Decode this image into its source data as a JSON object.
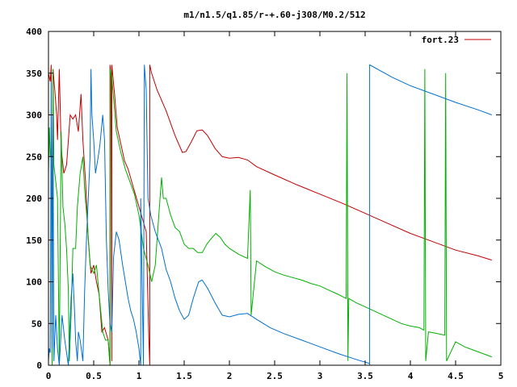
{
  "chart_data": {
    "type": "line",
    "title": "m1/n1.5/q1.85/r-+.60-j308/M0.2/512",
    "xlabel": "",
    "ylabel": "",
    "xlim": [
      0,
      5
    ],
    "ylim": [
      0,
      400
    ],
    "xticks": [
      "0",
      "0.5",
      "1",
      "1.5",
      "2",
      "2.5",
      "3",
      "3.5",
      "4",
      "4.5",
      "5"
    ],
    "yticks": [
      "0",
      "50",
      "100",
      "150",
      "200",
      "250",
      "300",
      "350",
      "400"
    ],
    "legend": {
      "position": "top-right",
      "label": "fort.23",
      "color": "#c00000"
    },
    "grid": false,
    "series": [
      {
        "color": "#c00000",
        "points": [
          [
            0.0,
            350
          ],
          [
            0.02,
            340
          ],
          [
            0.03,
            360
          ],
          [
            0.04,
            5
          ],
          [
            0.05,
            355
          ],
          [
            0.07,
            330
          ],
          [
            0.09,
            300
          ],
          [
            0.1,
            270
          ],
          [
            0.12,
            355
          ],
          [
            0.14,
            260
          ],
          [
            0.17,
            230
          ],
          [
            0.2,
            240
          ],
          [
            0.24,
            300
          ],
          [
            0.27,
            295
          ],
          [
            0.3,
            300
          ],
          [
            0.33,
            280
          ],
          [
            0.36,
            325
          ],
          [
            0.38,
            270
          ],
          [
            0.41,
            220
          ],
          [
            0.44,
            150
          ],
          [
            0.47,
            110
          ],
          [
            0.5,
            120
          ],
          [
            0.53,
            100
          ],
          [
            0.56,
            85
          ],
          [
            0.59,
            40
          ],
          [
            0.62,
            45
          ],
          [
            0.66,
            30
          ],
          [
            0.68,
            0
          ],
          [
            0.68,
            360
          ],
          [
            0.69,
            350
          ],
          [
            0.7,
            5
          ],
          [
            0.7,
            360
          ],
          [
            0.73,
            325
          ],
          [
            0.76,
            285
          ],
          [
            0.8,
            265
          ],
          [
            0.84,
            245
          ],
          [
            0.88,
            235
          ],
          [
            0.92,
            220
          ],
          [
            0.96,
            205
          ],
          [
            1.0,
            190
          ],
          [
            1.04,
            175
          ],
          [
            1.08,
            160
          ],
          [
            1.11,
            30
          ],
          [
            1.12,
            0
          ],
          [
            1.12,
            360
          ],
          [
            1.14,
            350
          ],
          [
            1.2,
            330
          ],
          [
            1.3,
            305
          ],
          [
            1.4,
            275
          ],
          [
            1.48,
            255
          ],
          [
            1.52,
            256
          ],
          [
            1.58,
            268
          ],
          [
            1.64,
            281
          ],
          [
            1.7,
            282
          ],
          [
            1.76,
            275
          ],
          [
            1.84,
            260
          ],
          [
            1.92,
            250
          ],
          [
            2.0,
            248
          ],
          [
            2.1,
            249
          ],
          [
            2.2,
            246
          ],
          [
            2.3,
            238
          ],
          [
            2.5,
            228
          ],
          [
            2.75,
            216
          ],
          [
            3.0,
            205
          ],
          [
            3.25,
            194
          ],
          [
            3.5,
            182
          ],
          [
            3.75,
            170
          ],
          [
            4.0,
            158
          ],
          [
            4.25,
            148
          ],
          [
            4.5,
            138
          ],
          [
            4.75,
            131
          ],
          [
            4.9,
            126
          ]
        ]
      },
      {
        "color": "#00b000",
        "points": [
          [
            0.0,
            230
          ],
          [
            0.01,
            285
          ],
          [
            0.02,
            250
          ],
          [
            0.03,
            260
          ],
          [
            0.04,
            0
          ],
          [
            0.05,
            355
          ],
          [
            0.06,
            240
          ],
          [
            0.08,
            220
          ],
          [
            0.1,
            200
          ],
          [
            0.12,
            5
          ],
          [
            0.14,
            280
          ],
          [
            0.16,
            190
          ],
          [
            0.18,
            170
          ],
          [
            0.2,
            140
          ],
          [
            0.22,
            90
          ],
          [
            0.23,
            5
          ],
          [
            0.25,
            60
          ],
          [
            0.27,
            140
          ],
          [
            0.3,
            140
          ],
          [
            0.32,
            190
          ],
          [
            0.35,
            230
          ],
          [
            0.38,
            250
          ],
          [
            0.4,
            210
          ],
          [
            0.43,
            170
          ],
          [
            0.46,
            120
          ],
          [
            0.5,
            110
          ],
          [
            0.53,
            120
          ],
          [
            0.56,
            85
          ],
          [
            0.6,
            40
          ],
          [
            0.63,
            30
          ],
          [
            0.66,
            30
          ],
          [
            0.68,
            0
          ],
          [
            0.68,
            355
          ],
          [
            0.7,
            345
          ],
          [
            0.72,
            320
          ],
          [
            0.75,
            280
          ],
          [
            0.8,
            255
          ],
          [
            0.85,
            235
          ],
          [
            0.9,
            220
          ],
          [
            0.95,
            205
          ],
          [
            1.0,
            180
          ],
          [
            1.05,
            140
          ],
          [
            1.1,
            120
          ],
          [
            1.14,
            100
          ],
          [
            1.18,
            120
          ],
          [
            1.22,
            180
          ],
          [
            1.25,
            225
          ],
          [
            1.27,
            200
          ],
          [
            1.3,
            200
          ],
          [
            1.35,
            180
          ],
          [
            1.4,
            165
          ],
          [
            1.45,
            160
          ],
          [
            1.5,
            145
          ],
          [
            1.55,
            140
          ],
          [
            1.6,
            140
          ],
          [
            1.65,
            135
          ],
          [
            1.7,
            135
          ],
          [
            1.75,
            145
          ],
          [
            1.8,
            152
          ],
          [
            1.85,
            158
          ],
          [
            1.9,
            153
          ],
          [
            1.95,
            145
          ],
          [
            2.0,
            140
          ],
          [
            2.1,
            133
          ],
          [
            2.2,
            128
          ],
          [
            2.23,
            210
          ],
          [
            2.24,
            60
          ],
          [
            2.3,
            125
          ],
          [
            2.4,
            118
          ],
          [
            2.5,
            112
          ],
          [
            2.6,
            108
          ],
          [
            2.7,
            105
          ],
          [
            2.8,
            102
          ],
          [
            2.9,
            98
          ],
          [
            3.0,
            95
          ],
          [
            3.1,
            90
          ],
          [
            3.2,
            85
          ],
          [
            3.29,
            80
          ],
          [
            3.3,
            350
          ],
          [
            3.31,
            5
          ],
          [
            3.32,
            80
          ],
          [
            3.4,
            75
          ],
          [
            3.5,
            70
          ],
          [
            3.6,
            65
          ],
          [
            3.7,
            60
          ],
          [
            3.8,
            55
          ],
          [
            3.9,
            50
          ],
          [
            4.0,
            47
          ],
          [
            4.1,
            45
          ],
          [
            4.15,
            42
          ],
          [
            4.16,
            355
          ],
          [
            4.17,
            5
          ],
          [
            4.2,
            40
          ],
          [
            4.3,
            38
          ],
          [
            4.38,
            36
          ],
          [
            4.39,
            350
          ],
          [
            4.4,
            5
          ],
          [
            4.5,
            28
          ],
          [
            4.6,
            22
          ],
          [
            4.7,
            18
          ],
          [
            4.8,
            14
          ],
          [
            4.9,
            10
          ]
        ]
      },
      {
        "color": "#0070d0",
        "points": [
          [
            0.0,
            5
          ],
          [
            0.01,
            20
          ],
          [
            0.02,
            15
          ],
          [
            0.03,
            340
          ],
          [
            0.04,
            20
          ],
          [
            0.05,
            300
          ],
          [
            0.06,
            5
          ],
          [
            0.08,
            60
          ],
          [
            0.1,
            20
          ],
          [
            0.12,
            0
          ],
          [
            0.15,
            60
          ],
          [
            0.18,
            30
          ],
          [
            0.22,
            0
          ],
          [
            0.25,
            80
          ],
          [
            0.27,
            110
          ],
          [
            0.29,
            60
          ],
          [
            0.3,
            30
          ],
          [
            0.32,
            5
          ],
          [
            0.33,
            40
          ],
          [
            0.35,
            30
          ],
          [
            0.38,
            5
          ],
          [
            0.4,
            90
          ],
          [
            0.42,
            150
          ],
          [
            0.44,
            200
          ],
          [
            0.46,
            250
          ],
          [
            0.47,
            355
          ],
          [
            0.48,
            300
          ],
          [
            0.5,
            270
          ],
          [
            0.52,
            230
          ],
          [
            0.55,
            250
          ],
          [
            0.57,
            265
          ],
          [
            0.6,
            300
          ],
          [
            0.62,
            270
          ],
          [
            0.64,
            150
          ],
          [
            0.66,
            90
          ],
          [
            0.68,
            50
          ],
          [
            0.7,
            40
          ],
          [
            0.72,
            130
          ],
          [
            0.75,
            160
          ],
          [
            0.78,
            150
          ],
          [
            0.82,
            120
          ],
          [
            0.85,
            100
          ],
          [
            0.88,
            80
          ],
          [
            0.91,
            65
          ],
          [
            0.94,
            55
          ],
          [
            0.97,
            40
          ],
          [
            1.0,
            20
          ],
          [
            1.02,
            0
          ],
          [
            1.02,
            200
          ],
          [
            1.05,
            0
          ],
          [
            1.06,
            360
          ],
          [
            1.08,
            330
          ],
          [
            1.1,
            200
          ],
          [
            1.13,
            180
          ],
          [
            1.18,
            160
          ],
          [
            1.25,
            140
          ],
          [
            1.3,
            115
          ],
          [
            1.35,
            100
          ],
          [
            1.4,
            80
          ],
          [
            1.45,
            65
          ],
          [
            1.5,
            55
          ],
          [
            1.55,
            60
          ],
          [
            1.6,
            80
          ],
          [
            1.66,
            100
          ],
          [
            1.7,
            102
          ],
          [
            1.76,
            92
          ],
          [
            1.84,
            75
          ],
          [
            1.92,
            60
          ],
          [
            2.0,
            58
          ],
          [
            2.1,
            61
          ],
          [
            2.2,
            62
          ],
          [
            2.3,
            55
          ],
          [
            2.45,
            45
          ],
          [
            2.6,
            38
          ],
          [
            2.8,
            30
          ],
          [
            3.0,
            22
          ],
          [
            3.2,
            14
          ],
          [
            3.4,
            7
          ],
          [
            3.55,
            2
          ],
          [
            3.55,
            0
          ],
          [
            3.55,
            360
          ],
          [
            3.8,
            345
          ],
          [
            4.0,
            335
          ],
          [
            4.25,
            325
          ],
          [
            4.5,
            315
          ],
          [
            4.75,
            306
          ],
          [
            4.9,
            300
          ]
        ]
      }
    ]
  }
}
